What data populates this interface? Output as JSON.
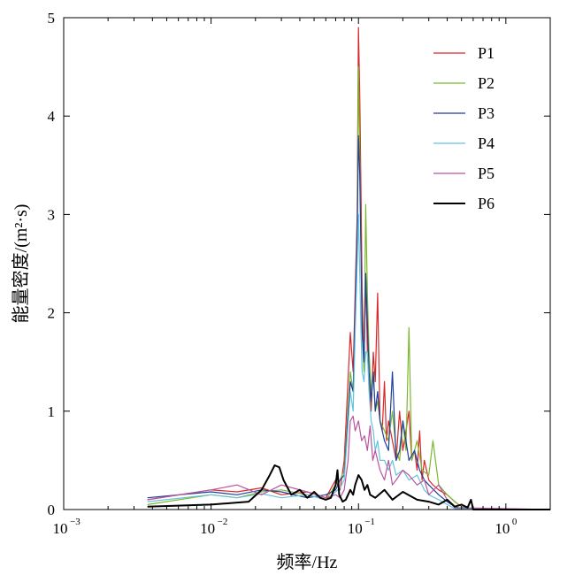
{
  "chart_data": {
    "type": "line",
    "title": "",
    "xlabel": "频率/Hz",
    "ylabel": "能量密度/(m²·s)",
    "xscale": "log",
    "xlim": [
      0.001,
      2
    ],
    "ylim": [
      0,
      5
    ],
    "grid": false,
    "legend_position": "top-right",
    "x_ticks": [
      {
        "value": 0.001,
        "base": "10",
        "exp": "−3"
      },
      {
        "value": 0.01,
        "base": "10",
        "exp": "−2"
      },
      {
        "value": 0.1,
        "base": "10",
        "exp": "−1"
      },
      {
        "value": 1,
        "base": "10",
        "exp": "0"
      }
    ],
    "y_ticks": [
      {
        "value": 0,
        "label": "0"
      },
      {
        "value": 1,
        "label": "1"
      },
      {
        "value": 2,
        "label": "2"
      },
      {
        "value": 3,
        "label": "3"
      },
      {
        "value": 4,
        "label": "4"
      },
      {
        "value": 5,
        "label": "5"
      }
    ],
    "series": [
      {
        "name": "P1",
        "color": "#d62728",
        "width": 1.2,
        "x": [
          0.0037,
          0.01,
          0.015,
          0.022,
          0.03,
          0.045,
          0.06,
          0.07,
          0.075,
          0.08,
          0.088,
          0.092,
          0.095,
          0.098,
          0.1,
          0.102,
          0.104,
          0.106,
          0.109,
          0.112,
          0.115,
          0.118,
          0.122,
          0.126,
          0.13,
          0.135,
          0.14,
          0.145,
          0.15,
          0.155,
          0.16,
          0.17,
          0.18,
          0.19,
          0.2,
          0.21,
          0.22,
          0.23,
          0.24,
          0.25,
          0.26,
          0.27,
          0.28,
          0.3,
          0.32,
          0.35,
          0.4,
          0.45,
          0.5,
          0.55,
          0.6,
          2
        ],
        "y": [
          0.1,
          0.2,
          0.18,
          0.22,
          0.15,
          0.18,
          0.12,
          0.3,
          0.2,
          0.5,
          1.8,
          1.4,
          2.2,
          3.0,
          4.9,
          4.2,
          3.2,
          2.2,
          1.5,
          2.4,
          1.6,
          1.3,
          1.0,
          1.6,
          1.3,
          2.2,
          0.9,
          0.8,
          1.3,
          0.7,
          0.9,
          0.7,
          0.5,
          1.0,
          0.6,
          0.8,
          1.0,
          0.5,
          0.6,
          0.4,
          0.8,
          0.3,
          0.5,
          0.3,
          0.25,
          0.2,
          0.15,
          0.08,
          0.03,
          0.01,
          0,
          0
        ]
      },
      {
        "name": "P2",
        "color": "#7cb82f",
        "width": 1.2,
        "x": [
          0.0037,
          0.01,
          0.015,
          0.022,
          0.03,
          0.045,
          0.06,
          0.07,
          0.075,
          0.08,
          0.088,
          0.092,
          0.095,
          0.098,
          0.1,
          0.102,
          0.104,
          0.106,
          0.109,
          0.112,
          0.115,
          0.118,
          0.122,
          0.126,
          0.13,
          0.135,
          0.14,
          0.15,
          0.16,
          0.17,
          0.18,
          0.19,
          0.2,
          0.21,
          0.22,
          0.23,
          0.24,
          0.25,
          0.27,
          0.3,
          0.32,
          0.35,
          0.4,
          0.45,
          0.5,
          0.55,
          2
        ],
        "y": [
          0.05,
          0.15,
          0.12,
          0.18,
          0.2,
          0.15,
          0.1,
          0.25,
          0.3,
          0.4,
          1.4,
          1.2,
          1.9,
          2.8,
          4.5,
          3.6,
          2.6,
          1.8,
          1.4,
          3.1,
          2.2,
          1.6,
          1.2,
          1.4,
          1.0,
          1.1,
          0.9,
          0.8,
          0.7,
          1.0,
          0.6,
          0.5,
          0.9,
          0.6,
          1.85,
          0.5,
          0.6,
          0.7,
          0.4,
          0.35,
          0.7,
          0.25,
          0.15,
          0.08,
          0.03,
          0.01,
          0
        ]
      },
      {
        "name": "P3",
        "color": "#1f3f9e",
        "width": 1.2,
        "x": [
          0.0037,
          0.01,
          0.015,
          0.022,
          0.03,
          0.045,
          0.06,
          0.07,
          0.075,
          0.08,
          0.088,
          0.092,
          0.095,
          0.098,
          0.1,
          0.102,
          0.104,
          0.106,
          0.109,
          0.112,
          0.115,
          0.118,
          0.122,
          0.126,
          0.13,
          0.135,
          0.14,
          0.15,
          0.16,
          0.17,
          0.18,
          0.19,
          0.2,
          0.22,
          0.24,
          0.26,
          0.28,
          0.3,
          0.35,
          0.4,
          0.45,
          0.5,
          2
        ],
        "y": [
          0.12,
          0.18,
          0.15,
          0.2,
          0.18,
          0.12,
          0.15,
          0.2,
          0.3,
          0.35,
          1.3,
          1.2,
          2.0,
          2.8,
          3.8,
          3.4,
          2.6,
          1.8,
          1.5,
          2.4,
          1.9,
          1.4,
          1.1,
          1.4,
          1.0,
          1.2,
          0.9,
          0.7,
          0.6,
          1.4,
          0.5,
          0.6,
          0.9,
          0.5,
          0.6,
          0.4,
          0.3,
          0.25,
          0.15,
          0.08,
          0.03,
          0.01,
          0
        ]
      },
      {
        "name": "P4",
        "color": "#63c2dc",
        "width": 1.2,
        "x": [
          0.0037,
          0.01,
          0.015,
          0.022,
          0.03,
          0.045,
          0.06,
          0.07,
          0.075,
          0.08,
          0.088,
          0.092,
          0.095,
          0.098,
          0.1,
          0.102,
          0.104,
          0.106,
          0.109,
          0.112,
          0.115,
          0.118,
          0.122,
          0.126,
          0.13,
          0.135,
          0.14,
          0.15,
          0.16,
          0.17,
          0.18,
          0.2,
          0.22,
          0.25,
          0.28,
          0.3,
          0.35,
          0.4,
          0.45,
          2
        ],
        "y": [
          0.08,
          0.15,
          0.12,
          0.16,
          0.12,
          0.15,
          0.1,
          0.18,
          0.22,
          0.3,
          1.2,
          1.0,
          1.8,
          2.5,
          3.0,
          2.4,
          1.8,
          1.4,
          1.3,
          1.6,
          1.6,
          1.2,
          0.9,
          0.8,
          0.6,
          0.7,
          0.5,
          0.5,
          0.4,
          0.5,
          0.35,
          0.4,
          0.3,
          0.35,
          0.2,
          0.15,
          0.1,
          0.05,
          0.01,
          0
        ]
      },
      {
        "name": "P5",
        "color": "#b9549f",
        "width": 1.2,
        "x": [
          0.0037,
          0.01,
          0.015,
          0.022,
          0.03,
          0.045,
          0.06,
          0.07,
          0.075,
          0.08,
          0.085,
          0.088,
          0.092,
          0.095,
          0.1,
          0.105,
          0.11,
          0.115,
          0.12,
          0.125,
          0.13,
          0.14,
          0.15,
          0.16,
          0.17,
          0.18,
          0.2,
          0.22,
          0.25,
          0.28,
          0.3,
          0.35,
          0.4,
          0.45,
          2
        ],
        "y": [
          0.1,
          0.2,
          0.25,
          0.15,
          0.25,
          0.18,
          0.12,
          0.15,
          0.12,
          0.2,
          0.5,
          0.9,
          0.95,
          0.8,
          0.9,
          0.7,
          0.75,
          0.6,
          0.85,
          0.5,
          0.6,
          0.4,
          0.3,
          0.5,
          0.25,
          0.3,
          0.4,
          0.35,
          0.25,
          0.3,
          0.15,
          0.25,
          0.1,
          0.02,
          0
        ]
      },
      {
        "name": "P6",
        "color": "#000000",
        "width": 2,
        "x": [
          0.0037,
          0.01,
          0.018,
          0.022,
          0.025,
          0.027,
          0.029,
          0.031,
          0.035,
          0.04,
          0.045,
          0.05,
          0.055,
          0.06,
          0.065,
          0.07,
          0.072,
          0.074,
          0.078,
          0.082,
          0.088,
          0.092,
          0.095,
          0.1,
          0.105,
          0.11,
          0.115,
          0.12,
          0.13,
          0.15,
          0.17,
          0.2,
          0.25,
          0.3,
          0.35,
          0.4,
          0.45,
          0.5,
          0.55,
          0.58,
          0.6,
          2
        ],
        "y": [
          0.03,
          0.05,
          0.08,
          0.2,
          0.35,
          0.45,
          0.43,
          0.3,
          0.15,
          0.2,
          0.12,
          0.18,
          0.12,
          0.1,
          0.12,
          0.25,
          0.4,
          0.15,
          0.08,
          0.1,
          0.2,
          0.15,
          0.25,
          0.35,
          0.3,
          0.2,
          0.25,
          0.15,
          0.12,
          0.2,
          0.1,
          0.18,
          0.1,
          0.08,
          0.05,
          0.1,
          0.03,
          0.05,
          0.02,
          0.1,
          0,
          0
        ]
      }
    ]
  }
}
